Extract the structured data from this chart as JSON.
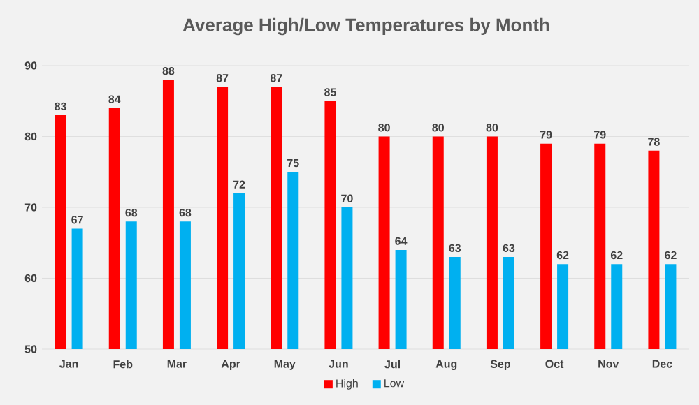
{
  "chart_data": {
    "type": "bar",
    "title": "Average High/Low Temperatures by Month",
    "categories": [
      "Jan",
      "Feb",
      "Mar",
      "Apr",
      "May",
      "Jun",
      "Jul",
      "Aug",
      "Sep",
      "Oct",
      "Nov",
      "Dec"
    ],
    "series": [
      {
        "name": "High",
        "color": "#ff0000",
        "values": [
          83,
          84,
          88,
          87,
          87,
          85,
          80,
          80,
          80,
          79,
          79,
          78
        ]
      },
      {
        "name": "Low",
        "color": "#00b0f0",
        "values": [
          67,
          68,
          68,
          72,
          75,
          70,
          64,
          63,
          63,
          62,
          62,
          62
        ]
      }
    ],
    "ylim": [
      50,
      90
    ],
    "yticks": [
      50,
      60,
      70,
      80,
      90
    ],
    "grid": "y",
    "legend": "bottom",
    "data_labels": true
  }
}
